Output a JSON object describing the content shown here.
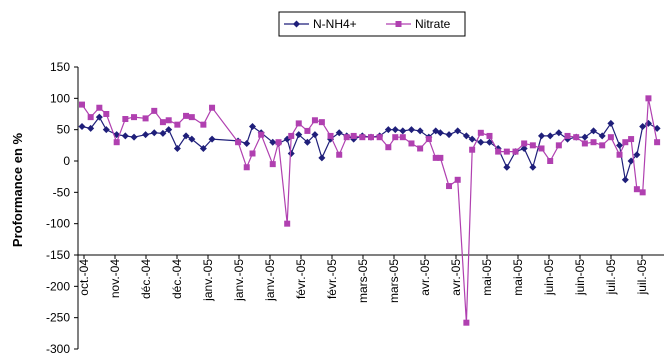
{
  "chart_data": {
    "type": "line",
    "ylabel": "Proformance en %",
    "ylim": [
      -300,
      150
    ],
    "yticks": [
      150,
      100,
      50,
      0,
      -50,
      -100,
      -150,
      -200,
      -250,
      -300
    ],
    "x_tick_labels": [
      "oct.-04",
      "nov.-04",
      "déc.-04",
      "déc.-04",
      "janv.-05",
      "janv.-05",
      "janv.-05",
      "févr.-05",
      "févr.-05",
      "mars-05",
      "mars-05",
      "avr.-05",
      "avr.-05",
      "mai-05",
      "mai-05",
      "juin-05",
      "juin-05",
      "juil.-05",
      "juil.-05"
    ],
    "x_range": [
      0,
      100
    ],
    "legend_position": "top-center",
    "series": [
      {
        "name": "N-NH4+",
        "color": "#1f1f7a",
        "marker": "diamond",
        "x": [
          0,
          1.5,
          3,
          4.2,
          6,
          7.5,
          9,
          11,
          12.5,
          14,
          15,
          16.5,
          18,
          19,
          21,
          22.5,
          27,
          28.5,
          29.5,
          31,
          33,
          34,
          35.5,
          36.2,
          37.5,
          39,
          40.3,
          41.5,
          43,
          44.5,
          45.8,
          47,
          48.5,
          50,
          51.5,
          53,
          54.2,
          55.5,
          57,
          58.5,
          60,
          61.2,
          62,
          63.5,
          65,
          66.5,
          67.5,
          69,
          70.5,
          72,
          73.5,
          75,
          76.5,
          78,
          79.5,
          81,
          82.5,
          84,
          85.5,
          87,
          88.5,
          90,
          91.5,
          93,
          94,
          95,
          96,
          97,
          98,
          99.5
        ],
        "y": [
          55,
          52,
          70,
          50,
          42,
          40,
          38,
          42,
          45,
          44,
          50,
          20,
          40,
          35,
          20,
          35,
          32,
          28,
          55,
          45,
          30,
          28,
          35,
          12,
          42,
          30,
          42,
          5,
          35,
          45,
          40,
          35,
          40,
          38,
          40,
          50,
          50,
          48,
          50,
          48,
          38,
          48,
          45,
          42,
          48,
          40,
          35,
          30,
          30,
          20,
          -10,
          15,
          20,
          -10,
          40,
          40,
          45,
          35,
          38,
          38,
          48,
          40,
          60,
          25,
          -30,
          0,
          10,
          55,
          60,
          52
        ]
      },
      {
        "name": "Nitrate",
        "color": "#b040b0",
        "marker": "square",
        "x": [
          0,
          1.5,
          3,
          4.2,
          6,
          7.5,
          9,
          11,
          12.5,
          14,
          15,
          16.5,
          18,
          19,
          21,
          22.5,
          27,
          28.5,
          29.5,
          31,
          33,
          34,
          35.5,
          36.2,
          37.5,
          39,
          40.3,
          41.5,
          43,
          44.5,
          45.8,
          47,
          48.5,
          50,
          51.5,
          53,
          54.2,
          55.5,
          57,
          58.5,
          60,
          61.2,
          62,
          63.5,
          65,
          66.5,
          67.5,
          69,
          70.5,
          72,
          73.5,
          75,
          76.5,
          78,
          79.5,
          81,
          82.5,
          84,
          85.5,
          87,
          88.5,
          90,
          91.5,
          93,
          94,
          95,
          96,
          97,
          98,
          99.5
        ],
        "y": [
          90,
          70,
          85,
          75,
          30,
          67,
          70,
          68,
          80,
          62,
          65,
          58,
          72,
          70,
          58,
          85,
          30,
          -10,
          12,
          42,
          -5,
          30,
          -100,
          40,
          60,
          48,
          65,
          62,
          40,
          10,
          38,
          40,
          38,
          38,
          38,
          22,
          38,
          38,
          28,
          20,
          35,
          5,
          5,
          -40,
          -30,
          -258,
          18,
          45,
          40,
          15,
          15,
          15,
          28,
          25,
          20,
          0,
          25,
          40,
          38,
          28,
          30,
          25,
          38,
          10,
          30,
          35,
          -45,
          -50,
          100,
          30
        ]
      }
    ]
  }
}
